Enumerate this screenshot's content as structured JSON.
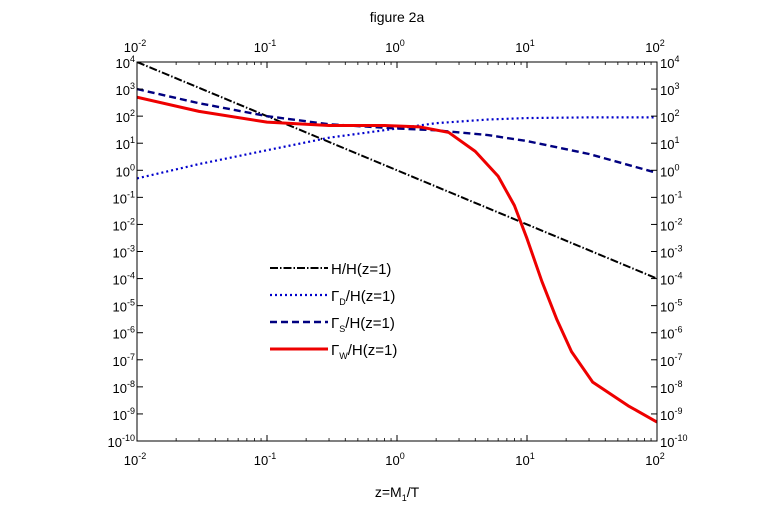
{
  "chart_data": {
    "type": "line",
    "title": "figure 2a",
    "xlabel": {
      "main": "z=M",
      "sub": "1",
      "rest": "/T"
    },
    "ylabel": "",
    "x_scale": "log",
    "y_scale": "log",
    "xlim": [
      0.01,
      100
    ],
    "ylim": [
      1e-10,
      10000
    ],
    "x_ticks": [
      {
        "base": "10",
        "exp": "-2",
        "value": 0.01
      },
      {
        "base": "10",
        "exp": "-1",
        "value": 0.1
      },
      {
        "base": "10",
        "exp": "0",
        "value": 1
      },
      {
        "base": "10",
        "exp": "1",
        "value": 10
      },
      {
        "base": "10",
        "exp": "2",
        "value": 100
      }
    ],
    "y_ticks": [
      {
        "base": "10",
        "exp": "4",
        "value": 10000
      },
      {
        "base": "10",
        "exp": "3",
        "value": 1000
      },
      {
        "base": "10",
        "exp": "2",
        "value": 100
      },
      {
        "base": "10",
        "exp": "1",
        "value": 10
      },
      {
        "base": "10",
        "exp": "0",
        "value": 1
      },
      {
        "base": "10",
        "exp": "-1",
        "value": 0.1
      },
      {
        "base": "10",
        "exp": "-2",
        "value": 0.01
      },
      {
        "base": "10",
        "exp": "-3",
        "value": 0.001
      },
      {
        "base": "10",
        "exp": "-4",
        "value": 0.0001
      },
      {
        "base": "10",
        "exp": "-5",
        "value": 1e-05
      },
      {
        "base": "10",
        "exp": "-6",
        "value": 1e-06
      },
      {
        "base": "10",
        "exp": "-7",
        "value": 1e-07
      },
      {
        "base": "10",
        "exp": "-8",
        "value": 1e-08
      },
      {
        "base": "10",
        "exp": "-9",
        "value": 1e-09
      },
      {
        "base": "10",
        "exp": "-10",
        "value": 1e-10
      }
    ],
    "legend_position": "center",
    "series": [
      {
        "name": "H/H(z=1)",
        "label_parts": {
          "main": "H/H(z=1)",
          "sub": "",
          "rest": ""
        },
        "color": "#000000",
        "style": "dashdot",
        "x": [
          0.01,
          0.1,
          1,
          10,
          100
        ],
        "y": [
          10000,
          100,
          1,
          0.01,
          0.0001
        ]
      },
      {
        "name": "ΓD/H(z=1)",
        "label_parts": {
          "main": "Γ",
          "sub": "D",
          "rest": "/H(z=1)"
        },
        "color": "#0000cc",
        "style": "dotted",
        "x": [
          0.01,
          0.03,
          0.1,
          0.3,
          1,
          2,
          5,
          10,
          30,
          100
        ],
        "y": [
          0.5,
          1.7,
          5.5,
          16,
          35,
          55,
          75,
          85,
          90,
          90
        ]
      },
      {
        "name": "ΓS/H(z=1)",
        "label_parts": {
          "main": "Γ",
          "sub": "S",
          "rest": "/H(z=1)"
        },
        "color": "#000080",
        "style": "dashed",
        "x": [
          0.01,
          0.03,
          0.1,
          0.3,
          1,
          2,
          5,
          10,
          30,
          100
        ],
        "y": [
          1000,
          300,
          100,
          50,
          35,
          30,
          20,
          12,
          4,
          0.8
        ]
      },
      {
        "name": "ΓW/H(z=1)",
        "label_parts": {
          "main": "Γ",
          "sub": "W",
          "rest": "/H(z=1)"
        },
        "color": "#ee0000",
        "style": "solid",
        "x": [
          0.01,
          0.03,
          0.1,
          0.3,
          0.8,
          1.5,
          2.5,
          4,
          6,
          8,
          10,
          13,
          17,
          22,
          32,
          60,
          100
        ],
        "y": [
          500,
          150,
          60,
          45,
          45,
          40,
          25,
          5,
          0.6,
          0.05,
          0.003,
          8e-05,
          3e-06,
          2e-07,
          1.5e-08,
          2e-09,
          5e-10
        ]
      }
    ]
  }
}
